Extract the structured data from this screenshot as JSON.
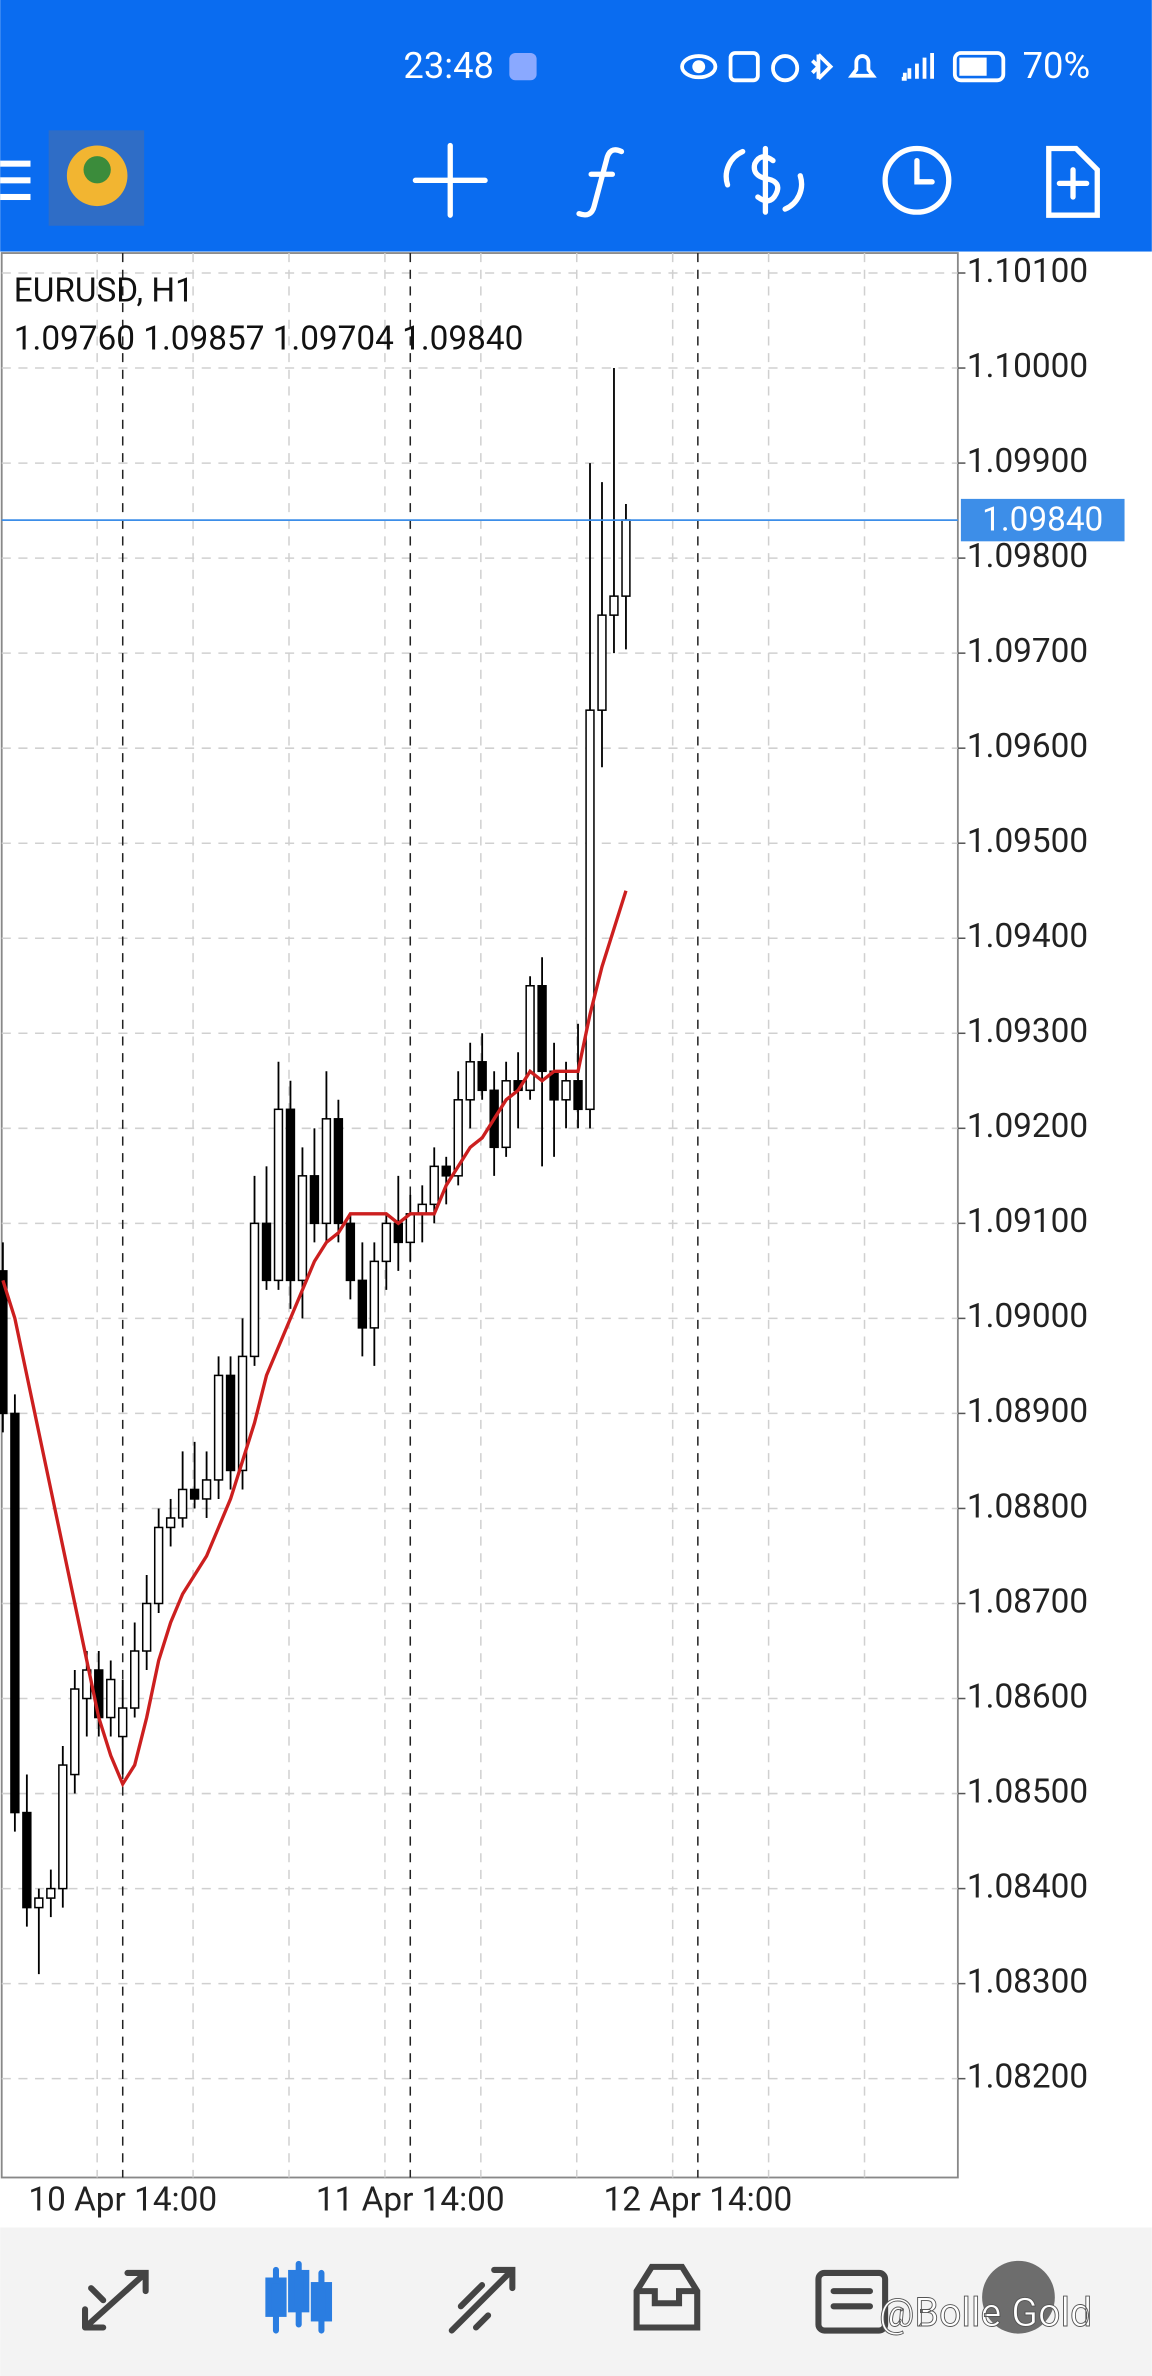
{
  "status_bar": {
    "time": "23:48",
    "battery": "70%"
  },
  "chart_data": {
    "type": "candlestick",
    "title": "EURUSD, H1",
    "subtitle": "1.09760 1.09857 1.09704 1.09840",
    "open": [
      1.0905,
      1.089,
      1.0848,
      1.0838,
      1.0839,
      1.084,
      1.0852,
      1.086,
      1.0863,
      1.0858,
      1.0856,
      1.0859,
      1.0865,
      1.087,
      1.0878,
      1.0879,
      1.0882,
      1.0881,
      1.0883,
      1.0894,
      1.0884,
      1.0896,
      1.091,
      1.0904,
      1.0922,
      1.0904,
      1.0915,
      1.091,
      1.0921,
      1.091,
      1.0904,
      1.0899,
      1.0906,
      1.091,
      1.0908,
      1.0911,
      1.0912,
      1.0916,
      1.0915,
      1.0923,
      1.0927,
      1.0924,
      1.0918,
      1.0925,
      1.0924,
      1.0935,
      1.0926,
      1.0923,
      1.0925,
      1.0922,
      1.0964,
      1.0974,
      1.0976
    ],
    "high": [
      1.0908,
      1.0892,
      1.0852,
      1.084,
      1.0842,
      1.0855,
      1.0863,
      1.0865,
      1.0865,
      1.0864,
      1.0862,
      1.0868,
      1.0873,
      1.088,
      1.0881,
      1.0886,
      1.0887,
      1.0886,
      1.0896,
      1.0896,
      1.09,
      1.0915,
      1.0916,
      1.0927,
      1.0925,
      1.0918,
      1.092,
      1.0926,
      1.0923,
      1.0911,
      1.0908,
      1.0908,
      1.0911,
      1.0915,
      1.0913,
      1.0914,
      1.0918,
      1.0917,
      1.0926,
      1.0929,
      1.093,
      1.0926,
      1.0927,
      1.0928,
      1.0936,
      1.0938,
      1.0929,
      1.0927,
      1.0931,
      1.099,
      1.0988,
      1.1,
      1.09857
    ],
    "low": [
      1.0888,
      1.0846,
      1.0836,
      1.0831,
      1.0837,
      1.0838,
      1.085,
      1.0856,
      1.0856,
      1.0856,
      1.0852,
      1.0858,
      1.0863,
      1.0869,
      1.0876,
      1.0878,
      1.088,
      1.0879,
      1.0881,
      1.0882,
      1.0882,
      1.0895,
      1.0903,
      1.0903,
      1.0901,
      1.09,
      1.0908,
      1.0908,
      1.0908,
      1.0902,
      1.0896,
      1.0895,
      1.0903,
      1.0905,
      1.0906,
      1.0908,
      1.091,
      1.0912,
      1.0914,
      1.092,
      1.0923,
      1.0915,
      1.0917,
      1.092,
      1.0923,
      1.0916,
      1.0917,
      1.092,
      1.092,
      1.092,
      1.0958,
      1.097,
      1.09704
    ],
    "close": [
      1.089,
      1.0848,
      1.0838,
      1.0839,
      1.084,
      1.0853,
      1.0861,
      1.0863,
      1.0858,
      1.0862,
      1.0859,
      1.0865,
      1.087,
      1.0878,
      1.0879,
      1.0882,
      1.0881,
      1.0883,
      1.0894,
      1.0884,
      1.0896,
      1.091,
      1.0904,
      1.0922,
      1.0904,
      1.0915,
      1.091,
      1.0921,
      1.091,
      1.0904,
      1.0899,
      1.0906,
      1.091,
      1.0908,
      1.0911,
      1.0912,
      1.0916,
      1.0915,
      1.0923,
      1.0927,
      1.0924,
      1.0918,
      1.0925,
      1.0924,
      1.0935,
      1.0926,
      1.0923,
      1.0925,
      1.0922,
      1.0964,
      1.0974,
      1.0976,
      1.0984
    ],
    "up_color": "#ffffff",
    "down_color": "#000000",
    "ma": {
      "color": "#cc1f1f",
      "values": [
        1.0904,
        1.09,
        1.0894,
        1.0888,
        1.0882,
        1.0876,
        1.087,
        1.0864,
        1.0858,
        1.0854,
        1.0851,
        1.0853,
        1.0858,
        1.0864,
        1.0868,
        1.0871,
        1.0873,
        1.0875,
        1.0878,
        1.0881,
        1.0885,
        1.0889,
        1.0894,
        1.0897,
        1.09,
        1.0903,
        1.0906,
        1.0908,
        1.0909,
        1.0911,
        1.0911,
        1.0911,
        1.0911,
        1.091,
        1.0911,
        1.0911,
        1.0911,
        1.0914,
        1.0916,
        1.0918,
        1.0919,
        1.0921,
        1.0923,
        1.0924,
        1.0926,
        1.0925,
        1.0926,
        1.0926,
        1.0926,
        1.0932,
        1.0937,
        1.0941,
        1.0945
      ]
    },
    "xlim": [
      -0.1,
      79.7
    ],
    "xticks": [
      {
        "value": 10,
        "label": "10 Apr 14:00"
      },
      {
        "value": 34,
        "label": "11 Apr 14:00"
      },
      {
        "value": 58,
        "label": "12 Apr 14:00"
      }
    ],
    "ylim": [
      1.08096,
      1.10121
    ],
    "yticks": [
      {
        "value": 1.101,
        "label": "1.10100"
      },
      {
        "value": 1.1,
        "label": "1.10000"
      },
      {
        "value": 1.099,
        "label": "1.09900"
      },
      {
        "value": 1.098,
        "label": "1.09800"
      },
      {
        "value": 1.097,
        "label": "1.09700"
      },
      {
        "value": 1.096,
        "label": "1.09600"
      },
      {
        "value": 1.095,
        "label": "1.09500"
      },
      {
        "value": 1.094,
        "label": "1.09400"
      },
      {
        "value": 1.093,
        "label": "1.09300"
      },
      {
        "value": 1.092,
        "label": "1.09200"
      },
      {
        "value": 1.091,
        "label": "1.09100"
      },
      {
        "value": 1.09,
        "label": "1.09000"
      },
      {
        "value": 1.089,
        "label": "1.08900"
      },
      {
        "value": 1.088,
        "label": "1.08800"
      },
      {
        "value": 1.087,
        "label": "1.08700"
      },
      {
        "value": 1.086,
        "label": "1.08600"
      },
      {
        "value": 1.085,
        "label": "1.08500"
      },
      {
        "value": 1.084,
        "label": "1.08400"
      },
      {
        "value": 1.083,
        "label": "1.08300"
      },
      {
        "value": 1.082,
        "label": "1.08200"
      }
    ],
    "current_price": {
      "value": 1.0984,
      "label": "1.09840"
    },
    "price_line_color": "#3d8ee8",
    "grid": true
  },
  "watermark": "@Bolle Gold"
}
